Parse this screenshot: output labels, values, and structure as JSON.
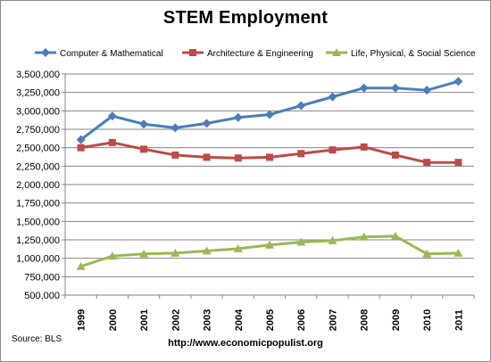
{
  "chart_data": {
    "type": "line",
    "title": "STEM Employment",
    "xlabel": "",
    "ylabel": "",
    "ylim": [
      500000,
      3500000
    ],
    "ytick_step": 250000,
    "grid": true,
    "legend_position": "top",
    "x": [
      "1999",
      "2000",
      "2001",
      "2002",
      "2003",
      "2004",
      "2005",
      "2006",
      "2007",
      "2008",
      "2009",
      "2010",
      "2011"
    ],
    "series": [
      {
        "name": "Computer & Mathematical",
        "color": "#4a7ebb",
        "marker": "diamond",
        "values": [
          2610000,
          2930000,
          2820000,
          2770000,
          2830000,
          2910000,
          2950000,
          3070000,
          3190000,
          3310000,
          3310000,
          3280000,
          3400000
        ]
      },
      {
        "name": "Architecture & Engineering",
        "color": "#be4b48",
        "marker": "square",
        "values": [
          2500000,
          2570000,
          2480000,
          2400000,
          2370000,
          2360000,
          2370000,
          2420000,
          2470000,
          2510000,
          2400000,
          2300000,
          2300000
        ]
      },
      {
        "name": "Life, Physical, & Social Science",
        "color": "#98b954",
        "marker": "triangle",
        "values": [
          890000,
          1030000,
          1060000,
          1070000,
          1100000,
          1130000,
          1180000,
          1220000,
          1240000,
          1290000,
          1300000,
          1060000,
          1070000
        ]
      }
    ]
  },
  "footer": {
    "source": "Source:  BLS",
    "url": "http://www.economicpopulist.org"
  }
}
